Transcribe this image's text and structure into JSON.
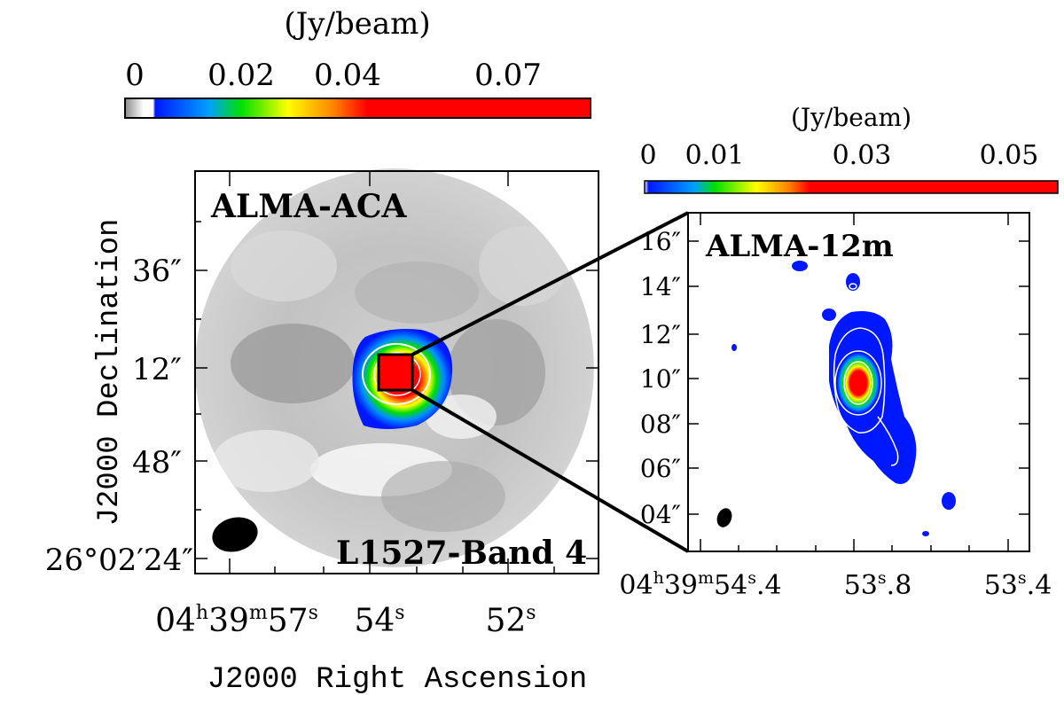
{
  "left_colorbar": {
    "unit": "(Jy/beam)",
    "ticks": [
      "0",
      "0.02",
      "0.04",
      "0.07"
    ]
  },
  "right_colorbar": {
    "unit": "(Jy/beam)",
    "ticks": [
      "0",
      "0.01",
      "0.03",
      "0.05"
    ]
  },
  "left_panel": {
    "label_top": "ALMA-ACA",
    "label_bottom": "L1527-Band 4",
    "dec_ticks": [
      "36″",
      "12″",
      "48″",
      "26°02′24″"
    ],
    "ra_ticks": {
      "a": {
        "h": "04",
        "m": "39",
        "s": "57"
      },
      "b": "54",
      "c": "52"
    }
  },
  "right_panel": {
    "label_top": "ALMA-12m",
    "dec_ticks": [
      "16″",
      "14″",
      "12″",
      "10″",
      "08″",
      "06″",
      "04″"
    ],
    "ra_ticks": {
      "a": {
        "h": "04",
        "m": "39",
        "s": "54",
        "frac": ".4"
      },
      "b": {
        "s": "53",
        "frac": ".8"
      },
      "c": {
        "s": "53",
        "frac": ".4"
      }
    }
  },
  "axes": {
    "ylabel": "J2000 Declination",
    "xlabel": "J2000 Right Ascension"
  },
  "colors": {
    "blue": "#0018ff",
    "green": "#00e000",
    "yellow": "#ffff00",
    "red": "#ff0000",
    "frame": "#000000"
  }
}
